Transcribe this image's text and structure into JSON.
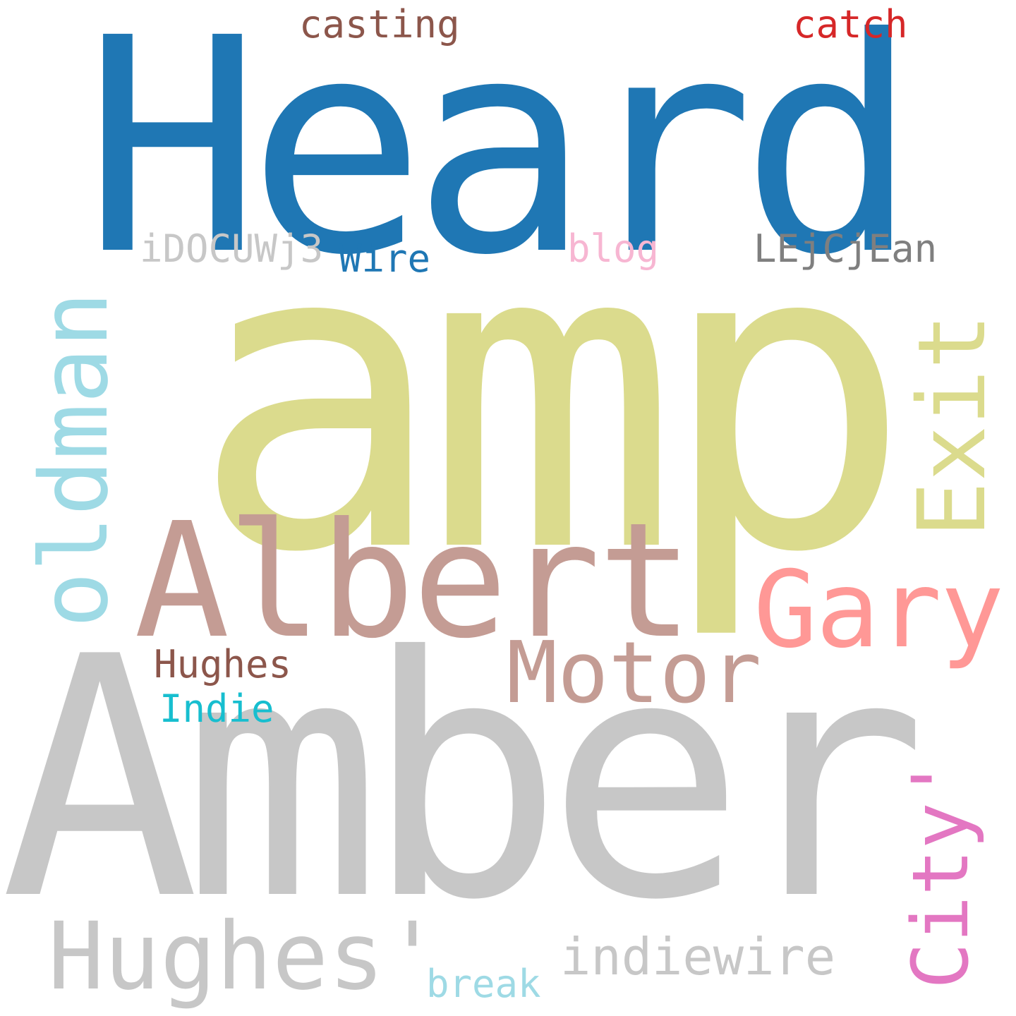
{
  "word_cloud": {
    "background": "#ffffff",
    "words": [
      {
        "id": "heard",
        "text": "Heard",
        "color": "#1f77b4",
        "orientation": "horizontal"
      },
      {
        "id": "amp",
        "text": "amp",
        "color": "#dbdb8d",
        "orientation": "horizontal"
      },
      {
        "id": "amber",
        "text": "Amber",
        "color": "#c7c7c7",
        "orientation": "horizontal"
      },
      {
        "id": "albert",
        "text": "Albert",
        "color": "#c49c94",
        "orientation": "horizontal"
      },
      {
        "id": "gary",
        "text": "Gary",
        "color": "#ff9896",
        "orientation": "horizontal"
      },
      {
        "id": "motor",
        "text": "Motor",
        "color": "#c49c94",
        "orientation": "horizontal"
      },
      {
        "id": "hughesq",
        "text": "Hughes'",
        "color": "#c7c7c7",
        "orientation": "horizontal"
      },
      {
        "id": "indiew",
        "text": "indiewire",
        "color": "#c7c7c7",
        "orientation": "horizontal"
      },
      {
        "id": "hughes",
        "text": "Hughes",
        "color": "#8c564b",
        "orientation": "horizontal"
      },
      {
        "id": "indie",
        "text": "Indie",
        "color": "#17becf",
        "orientation": "horizontal"
      },
      {
        "id": "break",
        "text": "break",
        "color": "#9edae5",
        "orientation": "horizontal"
      },
      {
        "id": "casting",
        "text": "casting",
        "color": "#8c564b",
        "orientation": "horizontal"
      },
      {
        "id": "catch",
        "text": "catch",
        "color": "#d62728",
        "orientation": "horizontal"
      },
      {
        "id": "idocu",
        "text": "iDOCUWj3",
        "color": "#c7c7c7",
        "orientation": "horizontal"
      },
      {
        "id": "wire",
        "text": "Wire",
        "color": "#1f77b4",
        "orientation": "horizontal"
      },
      {
        "id": "blog",
        "text": "blog",
        "color": "#f7b6d2",
        "orientation": "horizontal"
      },
      {
        "id": "lejc",
        "text": "LEjCjEan",
        "color": "#7f7f7f",
        "orientation": "horizontal"
      },
      {
        "id": "oldman",
        "text": "oldman",
        "color": "#9edae5",
        "orientation": "vertical"
      },
      {
        "id": "exit",
        "text": "Exit",
        "color": "#dbdb8d",
        "orientation": "vertical"
      },
      {
        "id": "city",
        "text": "City'",
        "color": "#e377c2",
        "orientation": "vertical"
      }
    ]
  }
}
